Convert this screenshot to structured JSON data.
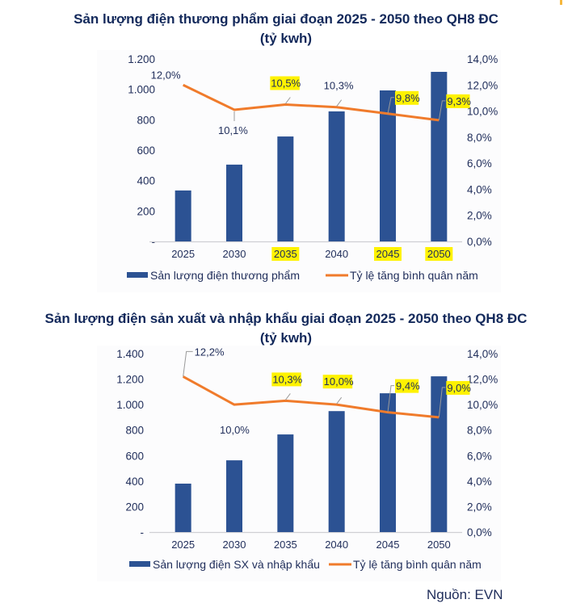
{
  "colors": {
    "bar": "#2c5293",
    "line": "#f07b2b",
    "highlight": "#fff200",
    "text": "#1f2d5a",
    "title": "#13295b",
    "axis": "#cfcfd4",
    "leader": "#9a9a9a"
  },
  "source": "Nguồn: EVN",
  "chart_data": [
    {
      "type": "bar",
      "title": "Sản lượng điện thương phẩm giai đoạn 2025 - 2050 theo QH8 ĐC",
      "subtitle": "(tỷ kwh)",
      "categories": [
        "2025",
        "2030",
        "2035",
        "2040",
        "2045",
        "2050"
      ],
      "highlighted_categories": [
        "2035",
        "2045",
        "2050"
      ],
      "series": [
        {
          "name": "Sản lượng điện thương phẩm",
          "type": "bar",
          "axis": "left",
          "values": [
            335,
            505,
            690,
            855,
            993,
            1115
          ]
        },
        {
          "name": "Tỷ lệ tăng bình quân năm",
          "type": "line",
          "axis": "right",
          "values": [
            12.0,
            10.1,
            10.5,
            10.3,
            9.8,
            9.3
          ],
          "labels": [
            "12,0%",
            "10,1%",
            "10,5%",
            "10,3%",
            "9,8%",
            "9,3%"
          ],
          "highlighted_labels": [
            false,
            false,
            true,
            false,
            true,
            true
          ]
        }
      ],
      "y_left": {
        "min": 0,
        "max": 1200,
        "step": 200,
        "tick_labels": [
          "-",
          "200",
          "400",
          "600",
          "800",
          "1.000",
          "1.200"
        ]
      },
      "y_right": {
        "min": 0,
        "max": 14,
        "step": 2,
        "tick_labels": [
          "0,0%",
          "2,0%",
          "4,0%",
          "6,0%",
          "8,0%",
          "10,0%",
          "12,0%",
          "14,0%"
        ]
      },
      "grid": false,
      "legend": "bottom"
    },
    {
      "type": "bar",
      "title": "Sản lượng điện sản xuất và nhập khẩu giai đoạn 2025 - 2050 theo QH8 ĐC",
      "subtitle": "(tỷ kwh)",
      "categories": [
        "2025",
        "2030",
        "2035",
        "2040",
        "2045",
        "2050"
      ],
      "highlighted_categories": [],
      "series": [
        {
          "name": "Sản lượng điện SX và nhập khẩu",
          "type": "bar",
          "axis": "left",
          "values": [
            380,
            563,
            766,
            949,
            1089,
            1222
          ]
        },
        {
          "name": "Tỷ lệ tăng bình quân năm",
          "type": "line",
          "axis": "right",
          "values": [
            12.2,
            10.0,
            10.3,
            10.0,
            9.4,
            9.0
          ],
          "labels": [
            "12,2%",
            "10,0%",
            "10,3%",
            "10,0%",
            "9,4%",
            "9,0%"
          ],
          "highlighted_labels": [
            false,
            false,
            true,
            true,
            true,
            true
          ]
        }
      ],
      "y_left": {
        "min": 0,
        "max": 1400,
        "step": 200,
        "tick_labels": [
          "-",
          "200",
          "400",
          "600",
          "800",
          "1.000",
          "1.200",
          "1.400"
        ]
      },
      "y_right": {
        "min": 0,
        "max": 14,
        "step": 2,
        "tick_labels": [
          "0,0%",
          "2,0%",
          "4,0%",
          "6,0%",
          "8,0%",
          "10,0%",
          "12,0%",
          "14,0%"
        ]
      },
      "grid": false,
      "legend": "bottom"
    }
  ]
}
